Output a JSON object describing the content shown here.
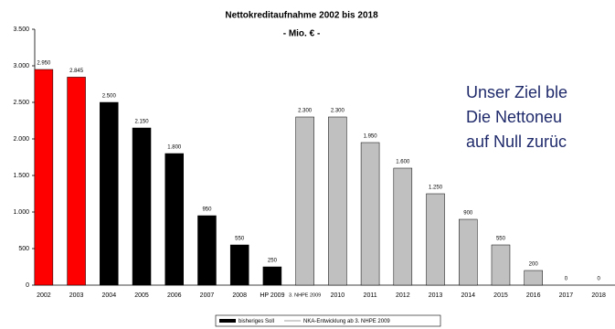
{
  "chart_data": {
    "type": "bar",
    "title": "Nettokreditaufnahme 2002 bis 2018",
    "subtitle": "- Mio. € -",
    "categories": [
      "2002",
      "2003",
      "2004",
      "2005",
      "2006",
      "2007",
      "2008",
      "HP 2009",
      "3. NHPE 2009",
      "2010",
      "2011",
      "2012",
      "2013",
      "2014",
      "2015",
      "2016",
      "2017",
      "2018"
    ],
    "values": [
      2950,
      2845,
      2500,
      2150,
      1800,
      950,
      550,
      250,
      2300,
      2300,
      1950,
      1600,
      1250,
      900,
      550,
      200,
      0,
      0
    ],
    "value_labels": [
      "2.950",
      "2.845",
      "2.500",
      "2.150",
      "1.800",
      "950",
      "550",
      "250",
      "2.300",
      "2.300",
      "1.950",
      "1.600",
      "1.250",
      "900",
      "550",
      "200",
      "0",
      "0"
    ],
    "colors": [
      "#ff0000",
      "#ff0000",
      "#000000",
      "#000000",
      "#000000",
      "#000000",
      "#000000",
      "#000000",
      "#c0c0c0",
      "#c0c0c0",
      "#c0c0c0",
      "#c0c0c0",
      "#c0c0c0",
      "#c0c0c0",
      "#c0c0c0",
      "#c0c0c0",
      "#c0c0c0",
      "#c0c0c0"
    ],
    "ylim": [
      0,
      3500
    ],
    "yticks": [
      0,
      {
        "value": 500,
        "label": "500"
      },
      {
        "value": 1000,
        "label": "1.000"
      },
      {
        "value": 1500,
        "label": "1.500"
      },
      {
        "value": 2000,
        "label": "2.000"
      },
      {
        "value": 2500,
        "label": "2.500"
      },
      {
        "value": 3000,
        "label": "3.000"
      },
      {
        "value": 3500,
        "label": "3.500"
      }
    ],
    "grid": false,
    "legend": [
      {
        "name": "bisheriges Soll",
        "color": "#000000",
        "marker": "bar"
      },
      {
        "name": "NKA-Entwicklung ab 3. NHPE 2009",
        "color": "#c0c0c0",
        "marker": "line"
      }
    ],
    "annotations": [
      "Unser Ziel ble",
      "Die Nettoneu",
      "auf Null zurüc"
    ]
  }
}
